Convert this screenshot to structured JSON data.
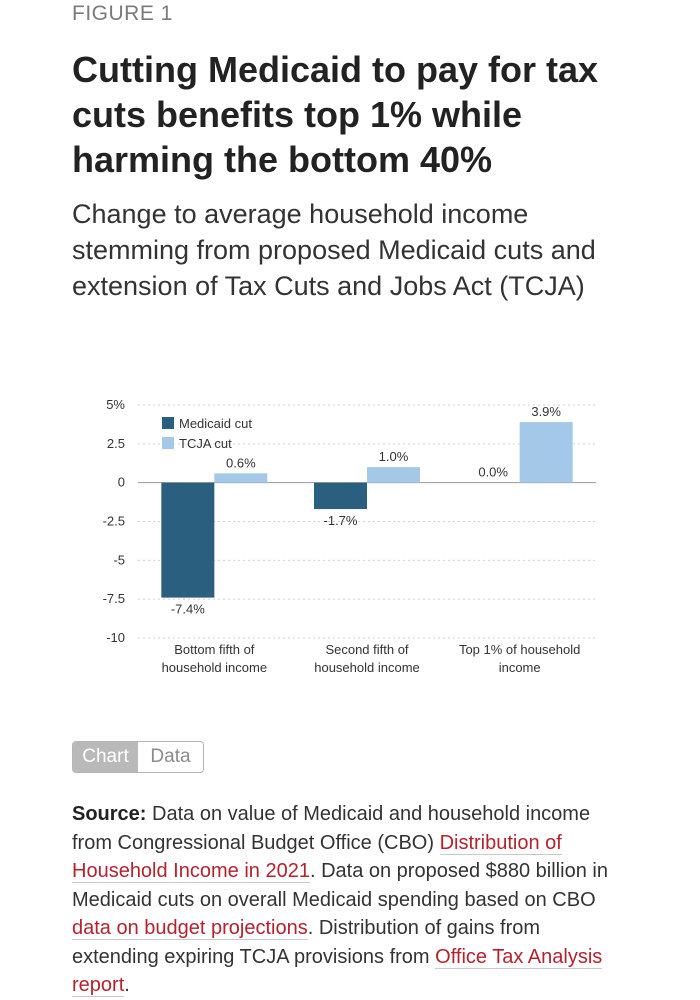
{
  "figure_label": "FIGURE 1",
  "title": "Cutting Medicaid to pay for tax cuts benefits top 1% while harming the bottom 40%",
  "subtitle": "Change to average household income stemming from proposed Medicaid cuts and extension of Tax Cuts and Jobs Act (TCJA)",
  "chart_data": {
    "type": "bar",
    "categories": [
      [
        "Bottom fifth of",
        "household income"
      ],
      [
        "Second fifth of",
        "household income"
      ],
      [
        "Top 1% of household",
        "income"
      ]
    ],
    "series": [
      {
        "name": "Medicaid cut",
        "values": [
          -7.4,
          -1.7,
          0.0
        ],
        "labels": [
          "-7.4%",
          "-1.7%",
          "0.0%"
        ],
        "color": "#2a5f80"
      },
      {
        "name": "TCJA cut",
        "values": [
          0.6,
          1.0,
          3.9
        ],
        "labels": [
          "0.6%",
          "1.0%",
          "3.9%"
        ],
        "color": "#a3c8e8"
      }
    ],
    "y_ticks": [
      {
        "value": 5,
        "label": "5%"
      },
      {
        "value": 2.5,
        "label": "2.5"
      },
      {
        "value": 0,
        "label": "0"
      },
      {
        "value": -2.5,
        "label": "-2.5"
      },
      {
        "value": -5,
        "label": "-5"
      },
      {
        "value": -7.5,
        "label": "-7.5"
      },
      {
        "value": -10,
        "label": "-10"
      }
    ],
    "ylim": [
      -10,
      5
    ],
    "grid": true,
    "legend": "top-left",
    "title": "",
    "xlabel": "",
    "ylabel": ""
  },
  "toggle": {
    "chart_label": "Chart",
    "data_label": "Data"
  },
  "source": {
    "label": "Source:",
    "text1": " Data on value of Medicaid and household in­come from Congressional Budget Office (CBO) ",
    "link1": "Distribu­tion of Household Income in 2021",
    "text2": ". Data on proposed $880 billion in Medicaid cuts on overall Medicaid spend­ing based on CBO ",
    "link2": "data on budget projections",
    "text3": ". Distribu­tion of gains from extending expiring TCJA provisions from ",
    "link3": "Office Tax Analysis report",
    "text4": "."
  }
}
